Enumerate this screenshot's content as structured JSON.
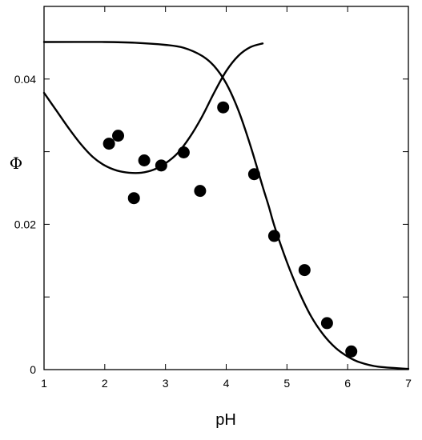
{
  "chart_data": {
    "type": "scatter",
    "xlabel": "pH",
    "ylabel": "Φ",
    "xlim": [
      1,
      7
    ],
    "ylim": [
      0,
      0.05
    ],
    "x_ticks": [
      1,
      2,
      3,
      4,
      5,
      6,
      7
    ],
    "x_tick_labels": [
      "1",
      "2",
      "3",
      "4",
      "5",
      "6",
      "7"
    ],
    "y_ticks": [
      0,
      0.01,
      0.02,
      0.03,
      0.04
    ],
    "y_tick_labels": [
      "0",
      "",
      "0.02",
      "",
      "0.04"
    ],
    "grid": false,
    "series": [
      {
        "type": "scatter",
        "x": [
          2.07,
          2.22,
          2.48,
          2.65,
          2.93,
          3.3,
          3.57,
          3.95,
          4.46,
          4.79,
          5.29,
          5.66,
          6.06
        ],
        "y": [
          0.0311,
          0.0322,
          0.0236,
          0.0288,
          0.0281,
          0.0299,
          0.0246,
          0.0361,
          0.0269,
          0.0184,
          0.0137,
          0.0064,
          0.0025
        ]
      },
      {
        "type": "line",
        "x": [
          1.0,
          1.2,
          1.4,
          1.6,
          1.8,
          2.0,
          2.2,
          2.4,
          2.6,
          2.8,
          3.0,
          3.2,
          3.4,
          3.6,
          3.8,
          4.0,
          4.2,
          4.4,
          4.6
        ],
        "y": [
          0.0381,
          0.0357,
          0.0333,
          0.0311,
          0.0293,
          0.0281,
          0.0274,
          0.0271,
          0.0271,
          0.0275,
          0.0284,
          0.0298,
          0.032,
          0.0348,
          0.0381,
          0.0411,
          0.0432,
          0.0444,
          0.0449
        ]
      },
      {
        "type": "line",
        "x": [
          1.0,
          2.0,
          2.5,
          3.0,
          3.3,
          3.6,
          3.8,
          4.0,
          4.2,
          4.4,
          4.6,
          4.7,
          4.8,
          5.0,
          5.2,
          5.4,
          5.6,
          5.8,
          6.0,
          6.2,
          6.5,
          7.0
        ],
        "y": [
          0.0451,
          0.0451,
          0.045,
          0.0447,
          0.0443,
          0.0432,
          0.0418,
          0.0394,
          0.0357,
          0.0308,
          0.0252,
          0.0225,
          0.0196,
          0.0148,
          0.0107,
          0.0073,
          0.0048,
          0.003,
          0.0018,
          0.001,
          0.0004,
          0.0001
        ]
      }
    ]
  }
}
